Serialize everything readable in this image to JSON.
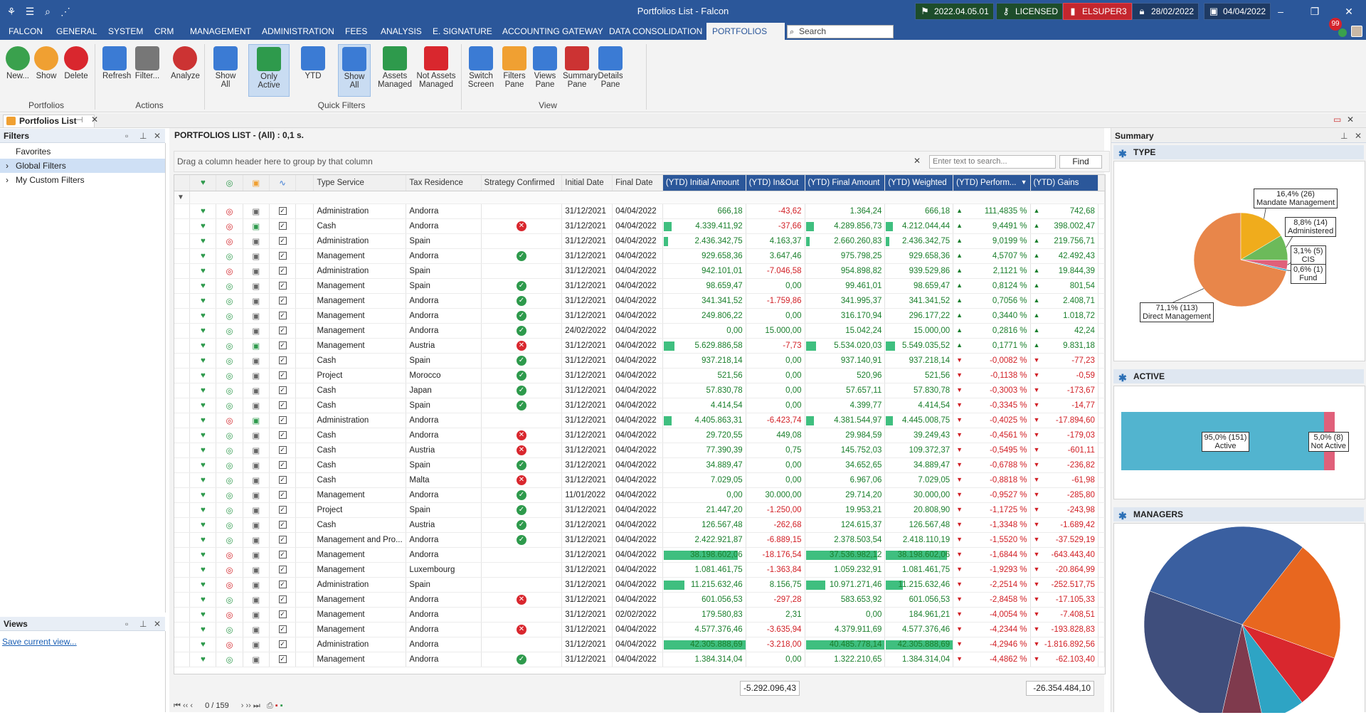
{
  "app": {
    "title": "Portfolios List - Falcon",
    "notif_count": "99"
  },
  "status": {
    "version": "2022.04.05.01",
    "license": "LICENSED",
    "user": "ELSUPER3",
    "date1": "28/02/2022",
    "date2": "04/04/2022"
  },
  "menu": [
    "FALCON",
    "GENERAL",
    "SYSTEM",
    "CRM",
    "MANAGEMENT",
    "ADMINISTRATION",
    "FEES",
    "ANALYSIS",
    "E. SIGNATURE",
    "ACCOUNTING GATEWAY",
    "DATA CONSOLIDATION",
    "PORTFOLIOS LIST"
  ],
  "search": {
    "placeholder": "Search"
  },
  "ribbon": {
    "buttons": [
      {
        "label": "New...",
        "icon": "add-icon",
        "color": "#3aa14d"
      },
      {
        "label": "Show",
        "icon": "folder-icon",
        "color": "#f0a032"
      },
      {
        "label": "Delete",
        "icon": "delete-icon",
        "color": "#d9272e"
      },
      {
        "label": "Refresh",
        "icon": "refresh-icon",
        "color": "#3b7bd4"
      },
      {
        "label": "Filter...",
        "icon": "filter-icon",
        "color": "#777"
      },
      {
        "label": "Analyze",
        "icon": "analyze-icon",
        "color": "#c33"
      },
      {
        "label": "Show All",
        "icon": "pulse-icon",
        "color": "#3b7bd4"
      },
      {
        "label": "Only Active",
        "icon": "pulse-active-icon",
        "color": "#2e9a4c"
      },
      {
        "label": "YTD",
        "icon": "clock-icon",
        "color": "#3b7bd4"
      },
      {
        "label": "Show All",
        "icon": "show-all-icon",
        "color": "#3b7bd4"
      },
      {
        "label": "Assets Managed",
        "icon": "assets-managed-icon",
        "color": "#2e9a4c"
      },
      {
        "label": "Not Assets Managed",
        "icon": "not-assets-managed-icon",
        "color": "#d9272e"
      },
      {
        "label": "Switch Screen",
        "icon": "switch-screen-icon",
        "color": "#3b7bd4"
      },
      {
        "label": "Filters Pane",
        "icon": "filters-pane-icon",
        "color": "#f0a032"
      },
      {
        "label": "Views Pane",
        "icon": "views-pane-icon",
        "color": "#3b7bd4"
      },
      {
        "label": "Summary Pane",
        "icon": "summary-pane-icon",
        "color": "#c33"
      },
      {
        "label": "Details Pane",
        "icon": "details-pane-icon",
        "color": "#3b7bd4"
      }
    ],
    "groups": [
      "Portfolios",
      "Actions",
      "Quick Filters",
      "View"
    ]
  },
  "doc_tab": {
    "label": "Portfolios List"
  },
  "filters_pane": {
    "title": "Filters",
    "items": [
      "Favorites",
      "Global Filters",
      "My Custom Filters"
    ]
  },
  "views_pane": {
    "title": "Views",
    "link": "Save current view..."
  },
  "grid": {
    "title": "PORTFOLIOS LIST - (All) : 0,1 s.",
    "group_hint": "Drag a column header here to group by that column",
    "search_placeholder": "Enter text to search...",
    "find": "Find",
    "columns": [
      "Type Service",
      "Tax Residence",
      "Strategy Confirmed",
      "Initial Date",
      "Final Date",
      "(YTD) Initial Amount",
      "(YTD) In&Out",
      "(YTD) Final Amount",
      "(YTD) Weighted",
      "(YTD) Perform...",
      "(YTD) Gains"
    ],
    "rows": [
      [
        "Administration",
        "Andorra",
        "",
        "31/12/2021",
        "04/04/2022",
        "666,18",
        "-43,62",
        "1.364,24",
        "666,18",
        "111,4835 %",
        "742,68",
        "red",
        ""
      ],
      [
        "Cash",
        "Andorra",
        "x",
        "31/12/2021",
        "04/04/2022",
        "4.339.411,92",
        "-37,66",
        "4.289.856,73",
        "4.212.044,44",
        "9,4491 %",
        "398.002,47",
        "red",
        "green"
      ],
      [
        "Administration",
        "Spain",
        "",
        "31/12/2021",
        "04/04/2022",
        "2.436.342,75",
        "4.163,37",
        "2.660.260,83",
        "2.436.342,75",
        "9,0199 %",
        "219.756,71",
        "red",
        ""
      ],
      [
        "Management",
        "Andorra",
        "ok",
        "31/12/2021",
        "04/04/2022",
        "929.658,36",
        "3.647,46",
        "975.798,25",
        "929.658,36",
        "4,5707 %",
        "42.492,43",
        "green",
        ""
      ],
      [
        "Administration",
        "Spain",
        "",
        "31/12/2021",
        "04/04/2022",
        "942.101,01",
        "-7.046,58",
        "954.898,82",
        "939.529,86",
        "2,1121 %",
        "19.844,39",
        "red",
        ""
      ],
      [
        "Management",
        "Spain",
        "ok",
        "31/12/2021",
        "04/04/2022",
        "98.659,47",
        "0,00",
        "99.461,01",
        "98.659,47",
        "0,8124 %",
        "801,54",
        "green",
        ""
      ],
      [
        "Management",
        "Andorra",
        "ok",
        "31/12/2021",
        "04/04/2022",
        "341.341,52",
        "-1.759,86",
        "341.995,37",
        "341.341,52",
        "0,7056 %",
        "2.408,71",
        "green",
        ""
      ],
      [
        "Management",
        "Andorra",
        "ok",
        "31/12/2021",
        "04/04/2022",
        "249.806,22",
        "0,00",
        "316.170,94",
        "296.177,22",
        "0,3440 %",
        "1.018,72",
        "green",
        ""
      ],
      [
        "Management",
        "Andorra",
        "ok",
        "24/02/2022",
        "04/04/2022",
        "0,00",
        "15.000,00",
        "15.042,24",
        "15.000,00",
        "0,2816 %",
        "42,24",
        "green",
        ""
      ],
      [
        "Management",
        "Austria",
        "x",
        "31/12/2021",
        "04/04/2022",
        "5.629.886,58",
        "-7,73",
        "5.534.020,03",
        "5.549.035,52",
        "0,1771 %",
        "9.831,18",
        "green",
        "green"
      ],
      [
        "Cash",
        "Spain",
        "ok",
        "31/12/2021",
        "04/04/2022",
        "937.218,14",
        "0,00",
        "937.140,91",
        "937.218,14",
        "-0,0082 %",
        "-77,23",
        "green",
        ""
      ],
      [
        "Project",
        "Morocco",
        "ok",
        "31/12/2021",
        "04/04/2022",
        "521,56",
        "0,00",
        "520,96",
        "521,56",
        "-0,1138 %",
        "-0,59",
        "green",
        ""
      ],
      [
        "Cash",
        "Japan",
        "ok",
        "31/12/2021",
        "04/04/2022",
        "57.830,78",
        "0,00",
        "57.657,11",
        "57.830,78",
        "-0,3003 %",
        "-173,67",
        "green",
        ""
      ],
      [
        "Cash",
        "Spain",
        "ok",
        "31/12/2021",
        "04/04/2022",
        "4.414,54",
        "0,00",
        "4.399,77",
        "4.414,54",
        "-0,3345 %",
        "-14,77",
        "green",
        ""
      ],
      [
        "Administration",
        "Andorra",
        "",
        "31/12/2021",
        "04/04/2022",
        "4.405.863,31",
        "-6.423,74",
        "4.381.544,97",
        "4.445.008,75",
        "-0,4025 %",
        "-17.894,60",
        "red",
        "green"
      ],
      [
        "Cash",
        "Andorra",
        "x",
        "31/12/2021",
        "04/04/2022",
        "29.720,55",
        "449,08",
        "29.984,59",
        "39.249,43",
        "-0,4561 %",
        "-179,03",
        "green",
        ""
      ],
      [
        "Cash",
        "Austria",
        "x",
        "31/12/2021",
        "04/04/2022",
        "77.390,39",
        "0,75",
        "145.752,03",
        "109.372,37",
        "-0,5495 %",
        "-601,11",
        "green",
        ""
      ],
      [
        "Cash",
        "Spain",
        "ok",
        "31/12/2021",
        "04/04/2022",
        "34.889,47",
        "0,00",
        "34.652,65",
        "34.889,47",
        "-0,6788 %",
        "-236,82",
        "green",
        ""
      ],
      [
        "Cash",
        "Malta",
        "x",
        "31/12/2021",
        "04/04/2022",
        "7.029,05",
        "0,00",
        "6.967,06",
        "7.029,05",
        "-0,8818 %",
        "-61,98",
        "green",
        ""
      ],
      [
        "Management",
        "Andorra",
        "ok",
        "11/01/2022",
        "04/04/2022",
        "0,00",
        "30.000,00",
        "29.714,20",
        "30.000,00",
        "-0,9527 %",
        "-285,80",
        "green",
        ""
      ],
      [
        "Project",
        "Spain",
        "ok",
        "31/12/2021",
        "04/04/2022",
        "21.447,20",
        "-1.250,00",
        "19.953,21",
        "20.808,90",
        "-1,1725 %",
        "-243,98",
        "green",
        ""
      ],
      [
        "Cash",
        "Austria",
        "ok",
        "31/12/2021",
        "04/04/2022",
        "126.567,48",
        "-262,68",
        "124.615,37",
        "126.567,48",
        "-1,3348 %",
        "-1.689,42",
        "green",
        ""
      ],
      [
        "Management and Pro...",
        "Andorra",
        "ok",
        "31/12/2021",
        "04/04/2022",
        "2.422.921,87",
        "-6.889,15",
        "2.378.503,54",
        "2.418.110,19",
        "-1,5520 %",
        "-37.529,19",
        "green",
        ""
      ],
      [
        "Management",
        "Andorra",
        "",
        "31/12/2021",
        "04/04/2022",
        "38.198.602,06",
        "-18.176,54",
        "37.536.982,12",
        "38.198.602,06",
        "-1,6844 %",
        "-643.443,40",
        "red",
        ""
      ],
      [
        "Management",
        "Luxembourg",
        "",
        "31/12/2021",
        "04/04/2022",
        "1.081.461,75",
        "-1.363,84",
        "1.059.232,91",
        "1.081.461,75",
        "-1,9293 %",
        "-20.864,99",
        "red",
        ""
      ],
      [
        "Administration",
        "Spain",
        "",
        "31/12/2021",
        "04/04/2022",
        "11.215.632,46",
        "8.156,75",
        "10.971.271,46",
        "11.215.632,46",
        "-2,2514 %",
        "-252.517,75",
        "red",
        ""
      ],
      [
        "Management",
        "Andorra",
        "x",
        "31/12/2021",
        "04/04/2022",
        "601.056,53",
        "-297,28",
        "583.653,92",
        "601.056,53",
        "-2,8458 %",
        "-17.105,33",
        "green",
        ""
      ],
      [
        "Management",
        "Andorra",
        "",
        "31/12/2021",
        "02/02/2022",
        "179.580,83",
        "2,31",
        "0,00",
        "184.961,21",
        "-4,0054 %",
        "-7.408,51",
        "red",
        ""
      ],
      [
        "Management",
        "Andorra",
        "x",
        "31/12/2021",
        "04/04/2022",
        "4.577.376,46",
        "-3.635,94",
        "4.379.911,69",
        "4.577.376,46",
        "-4,2344 %",
        "-193.828,83",
        "green",
        ""
      ],
      [
        "Administration",
        "Andorra",
        "",
        "31/12/2021",
        "04/04/2022",
        "42.305.888,69",
        "-3.218,00",
        "40.485.778,14",
        "42.305.888,69",
        "-4,2946 %",
        "-1.816.892,56",
        "red",
        ""
      ],
      [
        "Management",
        "Andorra",
        "ok",
        "31/12/2021",
        "04/04/2022",
        "1.384.314,04",
        "0,00",
        "1.322.210,65",
        "1.384.314,04",
        "-4,4862 %",
        "-62.103,40",
        "green",
        ""
      ]
    ],
    "bar_fracs": [
      0,
      0.1,
      0.05,
      0,
      0,
      0,
      0,
      0,
      0,
      0.13,
      0,
      0,
      0,
      0,
      0.1,
      0,
      0,
      0,
      0,
      0,
      0,
      0,
      0,
      0.9,
      0,
      0.25,
      0,
      0,
      0,
      1,
      0
    ],
    "footer": {
      "inout_total": "-5.292.096,43",
      "gains_total": "-26.354.484,10"
    },
    "pager": "0 / 159"
  },
  "summary": {
    "title": "Summary",
    "type": {
      "title": "TYPE",
      "slices": [
        {
          "label": "Direct Management",
          "text": "71,1% (113)",
          "value": 71.1,
          "color": "#e8864a"
        },
        {
          "label": "Mandate Management",
          "text": "16,4% (26)",
          "value": 16.4,
          "color": "#f0ac1c"
        },
        {
          "label": "Administered",
          "text": "8,8% (14)",
          "value": 8.8,
          "color": "#6cba5a"
        },
        {
          "label": "CIS",
          "text": "3,1% (5)",
          "value": 3.1,
          "color": "#e0607a"
        },
        {
          "label": "Fund",
          "text": "0,6% (1)",
          "value": 0.6,
          "color": "#4aa6c8"
        }
      ]
    },
    "active": {
      "title": "ACTIVE",
      "bars": [
        {
          "label": "Active",
          "text": "95,0% (151)",
          "value": 95.0,
          "color": "#52b4cf"
        },
        {
          "label": "Not Active",
          "text": "5,0% (8)",
          "value": 5.0,
          "color": "#e0607a"
        }
      ]
    },
    "managers": {
      "title": "MANAGERS",
      "slices": [
        {
          "value": 30,
          "color": "#3a5fa0"
        },
        {
          "value": 20,
          "color": "#e8671f"
        },
        {
          "value": 9,
          "color": "#d9272e"
        },
        {
          "value": 7,
          "color": "#2ea4c4"
        },
        {
          "value": 7,
          "color": "#7f3a4d"
        },
        {
          "value": 27,
          "color": "#3f4e7c"
        }
      ]
    }
  }
}
